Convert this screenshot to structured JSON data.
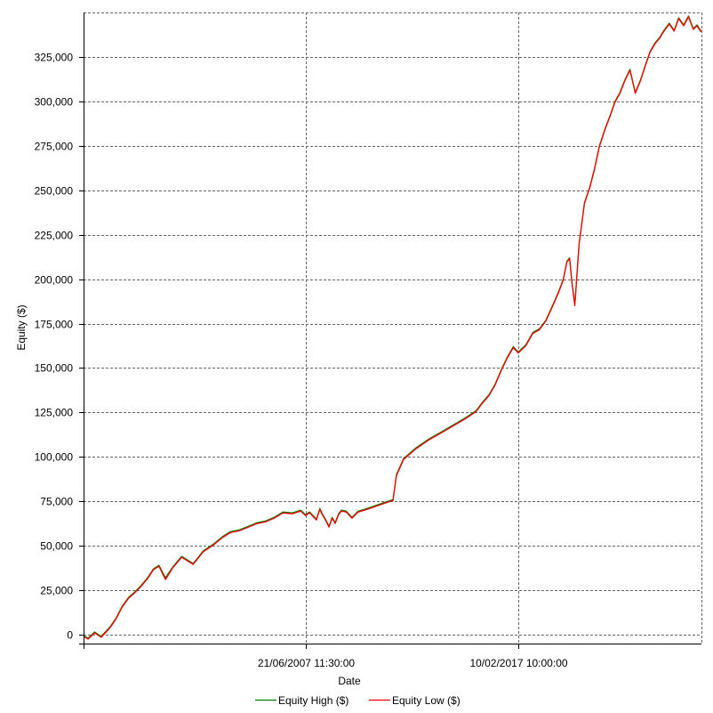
{
  "chart_data": {
    "type": "line",
    "title": "",
    "xlabel": "Date",
    "ylabel": "Equity ($)",
    "ylim": [
      -5000,
      350000
    ],
    "yticks": [
      0,
      25000,
      50000,
      75000,
      100000,
      125000,
      150000,
      175000,
      200000,
      225000,
      250000,
      275000,
      300000,
      325000
    ],
    "ytick_labels": [
      "0",
      "25,000",
      "50,000",
      "75,000",
      "100,000",
      "125,000",
      "150,000",
      "175,000",
      "200,000",
      "225,000",
      "250,000",
      "275,000",
      "300,000",
      "325,000"
    ],
    "xlim": [
      "1997-06-01",
      "2025-05-31"
    ],
    "xticks": [
      "2007-06-21 11:30:00",
      "2017-02-10 10:00:00"
    ],
    "xtick_labels": [
      "21/06/2007 11:30:00",
      "10/02/2017 10:00:00"
    ],
    "grid": true,
    "legend_position": "bottom-center",
    "series": [
      {
        "name": "Equity High ($)",
        "color": "#008000",
        "x": [
          "1997-06-01",
          "1997-08-15",
          "1997-12-01",
          "1998-03-20",
          "1998-06-10",
          "1998-08-15",
          "1998-11-15",
          "1999-03-01",
          "1999-06-15",
          "1999-09-25",
          "2000-01-05",
          "2000-04-25",
          "2000-08-01",
          "2000-10-30",
          "2001-02-15",
          "2001-06-15",
          "2001-11-10",
          "2002-05-20",
          "2002-10-30",
          "2003-04-20",
          "2003-09-10",
          "2004-01-30",
          "2004-06-25",
          "2004-11-20",
          "2005-04-10",
          "2005-08-30",
          "2006-01-20",
          "2006-06-15",
          "2006-11-10",
          "2007-04-05",
          "2007-06-21",
          "2007-08-30",
          "2007-12-20",
          "2008-02-15",
          "2008-03-25",
          "2008-05-25",
          "2008-07-15",
          "2008-09-05",
          "2008-10-25",
          "2008-12-20",
          "2009-02-05",
          "2009-04-25",
          "2009-07-30",
          "2009-11-10",
          "2010-02-20",
          "2010-06-30",
          "2010-12-15",
          "2011-06-10",
          "2011-08-05",
          "2011-12-01",
          "2012-06-20",
          "2013-01-20",
          "2013-08-15",
          "2014-03-05",
          "2014-09-20",
          "2015-03-15",
          "2015-07-05",
          "2015-10-15",
          "2016-01-25",
          "2016-05-05",
          "2016-08-10",
          "2016-11-20",
          "2017-02-10",
          "2017-06-15",
          "2017-10-10",
          "2018-01-25",
          "2018-05-15",
          "2018-08-30",
          "2018-12-10",
          "2019-02-25",
          "2019-04-25",
          "2019-06-10",
          "2019-07-20",
          "2019-09-05",
          "2019-10-10",
          "2019-11-15",
          "2020-02-10",
          "2020-05-10",
          "2020-07-25",
          "2020-10-15",
          "2021-01-20",
          "2021-04-10",
          "2021-06-30",
          "2021-09-20",
          "2021-12-10",
          "2022-03-05",
          "2022-06-01",
          "2022-08-25",
          "2022-11-10",
          "2023-01-30",
          "2023-04-25",
          "2023-07-10",
          "2023-09-20",
          "2023-12-15",
          "2024-03-05",
          "2024-05-20",
          "2024-08-10",
          "2024-10-30",
          "2025-01-15",
          "2025-03-20",
          "2025-05-25"
        ],
        "y": [
          -500,
          -2000,
          1500,
          -1000,
          2000,
          4500,
          9000,
          16000,
          21000,
          24000,
          27500,
          32000,
          37000,
          39000,
          32000,
          38000,
          44000,
          40000,
          47000,
          51000,
          55000,
          58000,
          59000,
          61000,
          63000,
          64000,
          66000,
          69000,
          68500,
          70000,
          67500,
          69000,
          65000,
          71000,
          68000,
          64500,
          61000,
          66000,
          63000,
          68000,
          70000,
          69500,
          66000,
          69500,
          70500,
          72000,
          74000,
          76000,
          90000,
          99000,
          105000,
          110000,
          114000,
          118000,
          122000,
          126000,
          131000,
          135000,
          141000,
          149000,
          156000,
          162000,
          159000,
          163000,
          170000,
          172000,
          177000,
          185000,
          193000,
          200000,
          210000,
          212000,
          198000,
          186000,
          203000,
          220000,
          243000,
          252000,
          262000,
          275000,
          285000,
          292000,
          300000,
          305000,
          312000,
          318000,
          305000,
          312000,
          320000,
          328000,
          333000,
          336000,
          340000,
          344000,
          340000,
          347000,
          343000,
          348000,
          341000,
          343000,
          339500
        ]
      },
      {
        "name": "Equity Low ($)",
        "color": "#ff0000",
        "x": [
          "1997-06-01",
          "1997-08-15",
          "1997-12-01",
          "1998-03-20",
          "1998-06-10",
          "1998-08-15",
          "1998-11-15",
          "1999-03-01",
          "1999-06-15",
          "1999-09-25",
          "2000-01-05",
          "2000-04-25",
          "2000-08-01",
          "2000-10-30",
          "2001-02-15",
          "2001-06-15",
          "2001-11-10",
          "2002-05-20",
          "2002-10-30",
          "2003-04-20",
          "2003-09-10",
          "2004-01-30",
          "2004-06-25",
          "2004-11-20",
          "2005-04-10",
          "2005-08-30",
          "2006-01-20",
          "2006-06-15",
          "2006-11-10",
          "2007-04-05",
          "2007-06-21",
          "2007-08-30",
          "2007-12-20",
          "2008-02-15",
          "2008-03-25",
          "2008-05-25",
          "2008-07-15",
          "2008-09-05",
          "2008-10-25",
          "2008-12-20",
          "2009-02-05",
          "2009-04-25",
          "2009-07-30",
          "2009-11-10",
          "2010-02-20",
          "2010-06-30",
          "2010-12-15",
          "2011-06-10",
          "2011-08-05",
          "2011-12-01",
          "2012-06-20",
          "2013-01-20",
          "2013-08-15",
          "2014-03-05",
          "2014-09-20",
          "2015-03-15",
          "2015-07-05",
          "2015-10-15",
          "2016-01-25",
          "2016-05-05",
          "2016-08-10",
          "2016-11-20",
          "2017-02-10",
          "2017-06-15",
          "2017-10-10",
          "2018-01-25",
          "2018-05-15",
          "2018-08-30",
          "2018-12-10",
          "2019-02-25",
          "2019-04-25",
          "2019-06-10",
          "2019-07-20",
          "2019-09-05",
          "2019-10-10",
          "2019-11-15",
          "2020-02-10",
          "2020-05-10",
          "2020-07-25",
          "2020-10-15",
          "2021-01-20",
          "2021-04-10",
          "2021-06-30",
          "2021-09-20",
          "2021-12-10",
          "2022-03-05",
          "2022-06-01",
          "2022-08-25",
          "2022-11-10",
          "2023-01-30",
          "2023-04-25",
          "2023-07-10",
          "2023-09-20",
          "2023-12-15",
          "2024-03-05",
          "2024-05-20",
          "2024-08-10",
          "2024-10-30",
          "2025-01-15",
          "2025-03-20",
          "2025-05-25"
        ],
        "y": [
          -1000,
          -2500,
          1000,
          -1500,
          1500,
          4000,
          8500,
          15500,
          20500,
          23500,
          27000,
          31500,
          36500,
          38500,
          31000,
          37500,
          43500,
          39500,
          46500,
          50500,
          54500,
          57500,
          58500,
          60500,
          62500,
          63500,
          65500,
          68500,
          68000,
          69500,
          67000,
          68500,
          64500,
          70500,
          67500,
          64000,
          60500,
          65500,
          62500,
          67500,
          69500,
          69000,
          65500,
          69000,
          70000,
          71500,
          73500,
          75500,
          89500,
          98500,
          104500,
          109500,
          113500,
          117500,
          121500,
          125500,
          130500,
          134500,
          140500,
          148500,
          155500,
          161500,
          158500,
          162500,
          169500,
          171500,
          176500,
          184500,
          192500,
          199500,
          209500,
          211500,
          197500,
          185000,
          202500,
          219500,
          242500,
          251500,
          261500,
          274500,
          284500,
          291500,
          299500,
          304500,
          311500,
          317500,
          304500,
          311500,
          319500,
          327500,
          332500,
          335500,
          339500,
          343500,
          339500,
          346500,
          342500,
          347500,
          340500,
          342500,
          339000
        ]
      }
    ]
  }
}
